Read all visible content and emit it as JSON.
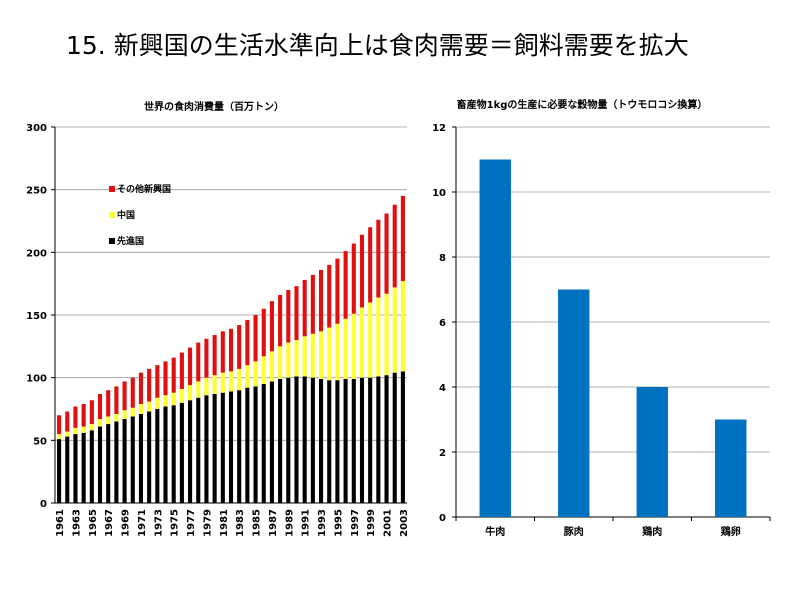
{
  "slide": {
    "title": "15. 新興国の生活水準向上は食肉需要＝飼料需要を拡大"
  },
  "chart_data": [
    {
      "type": "bar",
      "stacked": true,
      "title": "世界の食肉消費量（百万トン）",
      "x": [
        1961,
        1962,
        1963,
        1964,
        1965,
        1966,
        1967,
        1968,
        1969,
        1970,
        1971,
        1972,
        1973,
        1974,
        1975,
        1976,
        1977,
        1978,
        1979,
        1980,
        1981,
        1982,
        1983,
        1984,
        1985,
        1986,
        1987,
        1988,
        1989,
        1990,
        1991,
        1992,
        1993,
        1994,
        1995,
        1996,
        1997,
        1998,
        1999,
        2000,
        2001,
        2002,
        2003
      ],
      "x_tick_labels": [
        "1961",
        "1963",
        "1965",
        "1967",
        "1969",
        "1971",
        "1973",
        "1975",
        "1977",
        "1979",
        "1981",
        "1983",
        "1985",
        "1987",
        "1989",
        "1991",
        "1993",
        "1995",
        "1997",
        "1999",
        "2001",
        "2003"
      ],
      "ylim": [
        0,
        300
      ],
      "yticks": [
        0,
        50,
        100,
        150,
        200,
        250,
        300
      ],
      "legend_position": "top-left (inside)",
      "series": [
        {
          "name": "先進国",
          "color": "#000000",
          "values": [
            51,
            53,
            55,
            56,
            58,
            61,
            63,
            65,
            67,
            69,
            71,
            73,
            75,
            77,
            78,
            80,
            82,
            84,
            86,
            87,
            88,
            89,
            90,
            92,
            93,
            95,
            97,
            99,
            100,
            101,
            101,
            100,
            99,
            98,
            98,
            99,
            99,
            100,
            100,
            101,
            102,
            104,
            105
          ]
        },
        {
          "name": "中国",
          "color": "#ffff33",
          "values": [
            4,
            4,
            5,
            5,
            5,
            6,
            6,
            6,
            7,
            7,
            8,
            8,
            9,
            9,
            10,
            11,
            12,
            13,
            14,
            15,
            16,
            16,
            17,
            18,
            20,
            22,
            24,
            26,
            28,
            29,
            32,
            35,
            38,
            42,
            45,
            48,
            52,
            56,
            60,
            63,
            65,
            68,
            72
          ]
        },
        {
          "name": "その他新興国",
          "color": "#e01010",
          "values": [
            15,
            16,
            17,
            18,
            19,
            20,
            21,
            22,
            23,
            24,
            25,
            26,
            26,
            27,
            28,
            29,
            30,
            31,
            31,
            32,
            33,
            34,
            35,
            36,
            37,
            38,
            40,
            41,
            42,
            43,
            45,
            47,
            49,
            50,
            52,
            54,
            56,
            58,
            60,
            62,
            64,
            66,
            68
          ]
        }
      ]
    },
    {
      "type": "bar",
      "title": "畜産物1kgの生産に必要な穀物量（トウモロコシ換算）",
      "categories": [
        "牛肉",
        "豚肉",
        "鶏肉",
        "鶏卵"
      ],
      "values": [
        11,
        7,
        4,
        3
      ],
      "color": "#0070c0",
      "ylim": [
        0,
        12
      ],
      "yticks": [
        0,
        2,
        4,
        6,
        8,
        10,
        12
      ]
    }
  ]
}
